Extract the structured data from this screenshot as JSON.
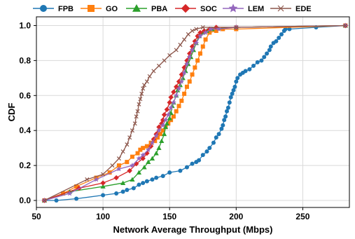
{
  "chart_data": {
    "type": "line",
    "xlabel": "Network Average Throughput (Mbps)",
    "ylabel": "CDF",
    "xlim": [
      50,
      285
    ],
    "ylim": [
      -0.04,
      1.05
    ],
    "xticks": [
      50,
      100,
      150,
      200,
      250
    ],
    "yticks": [
      0.0,
      0.2,
      0.4,
      0.6,
      0.8,
      1.0
    ],
    "xtick_labels": [
      "50",
      "100",
      "150",
      "200",
      "250"
    ],
    "ytick_labels": [
      "0.0",
      "0.2",
      "0.4",
      "0.6",
      "0.8",
      "1.0"
    ],
    "grid": true,
    "legend": "top, single row above plot",
    "series": [
      {
        "name": "FPB",
        "color": "#1f77b4",
        "marker": "circle",
        "x": [
          56,
          65,
          80,
          100,
          110,
          115,
          118,
          123,
          127,
          130,
          133,
          137,
          140,
          145,
          150,
          158,
          163,
          167,
          170,
          172,
          175,
          178,
          180,
          183,
          185,
          187,
          189,
          190,
          191,
          192,
          193,
          194,
          195,
          196,
          197,
          198,
          199,
          200,
          201,
          203,
          205,
          207,
          210,
          213,
          216,
          219,
          221,
          223,
          225,
          226,
          228,
          230,
          232,
          234,
          236,
          237,
          240,
          260,
          282
        ],
        "y": [
          0.0,
          0.0,
          0.01,
          0.03,
          0.04,
          0.05,
          0.06,
          0.07,
          0.09,
          0.1,
          0.11,
          0.12,
          0.13,
          0.14,
          0.16,
          0.17,
          0.19,
          0.21,
          0.22,
          0.23,
          0.26,
          0.28,
          0.3,
          0.33,
          0.36,
          0.38,
          0.41,
          0.43,
          0.46,
          0.48,
          0.51,
          0.53,
          0.56,
          0.59,
          0.61,
          0.63,
          0.65,
          0.68,
          0.7,
          0.72,
          0.73,
          0.74,
          0.75,
          0.77,
          0.79,
          0.8,
          0.82,
          0.84,
          0.86,
          0.88,
          0.9,
          0.91,
          0.93,
          0.95,
          0.97,
          0.98,
          0.98,
          0.99,
          1.0
        ]
      },
      {
        "name": "GO",
        "color": "#ff7f0e",
        "marker": "square",
        "x": [
          56,
          70,
          80,
          95,
          105,
          112,
          118,
          122,
          126,
          128,
          130,
          133,
          136,
          139,
          141,
          143,
          145,
          147,
          149,
          151,
          153,
          155,
          157,
          159,
          161,
          163,
          165,
          167,
          169,
          171,
          173,
          175,
          177,
          180,
          185,
          190,
          200,
          282
        ],
        "y": [
          0.0,
          0.04,
          0.08,
          0.13,
          0.16,
          0.2,
          0.22,
          0.25,
          0.27,
          0.29,
          0.3,
          0.31,
          0.33,
          0.34,
          0.36,
          0.38,
          0.4,
          0.42,
          0.44,
          0.46,
          0.48,
          0.51,
          0.54,
          0.57,
          0.61,
          0.65,
          0.68,
          0.72,
          0.76,
          0.8,
          0.84,
          0.88,
          0.92,
          0.96,
          0.97,
          0.98,
          0.98,
          1.0
        ]
      },
      {
        "name": "PBA",
        "color": "#2ca02c",
        "marker": "triangle",
        "x": [
          56,
          75,
          100,
          115,
          122,
          127,
          131,
          134,
          137,
          140,
          142,
          144,
          146,
          147,
          148,
          150,
          151,
          152,
          153,
          155,
          156,
          158,
          160,
          162,
          164,
          166,
          168,
          170,
          172,
          175,
          178,
          182,
          200,
          282
        ],
        "y": [
          0.0,
          0.05,
          0.08,
          0.1,
          0.12,
          0.16,
          0.19,
          0.22,
          0.24,
          0.27,
          0.3,
          0.34,
          0.38,
          0.42,
          0.44,
          0.47,
          0.5,
          0.54,
          0.56,
          0.6,
          0.63,
          0.66,
          0.7,
          0.74,
          0.78,
          0.82,
          0.86,
          0.9,
          0.94,
          0.96,
          0.97,
          0.98,
          0.99,
          1.0
        ]
      },
      {
        "name": "SOC",
        "color": "#d62728",
        "marker": "diamond",
        "x": [
          56,
          82,
          100,
          110,
          120,
          125,
          130,
          133,
          136,
          138,
          140,
          142,
          144,
          145,
          146,
          148,
          150,
          151,
          153,
          155,
          157,
          159,
          161,
          163,
          165,
          167,
          169,
          171,
          173,
          176,
          180,
          185,
          200,
          282
        ],
        "y": [
          0.0,
          0.07,
          0.1,
          0.13,
          0.17,
          0.21,
          0.24,
          0.27,
          0.31,
          0.35,
          0.38,
          0.42,
          0.44,
          0.46,
          0.49,
          0.52,
          0.56,
          0.59,
          0.62,
          0.65,
          0.68,
          0.72,
          0.76,
          0.8,
          0.84,
          0.88,
          0.91,
          0.94,
          0.96,
          0.97,
          0.98,
          0.99,
          0.99,
          1.0
        ]
      },
      {
        "name": "LEM",
        "color": "#9467bd",
        "marker": "star",
        "x": [
          56,
          75,
          95,
          112,
          122,
          127,
          130,
          134,
          137,
          140,
          142,
          145,
          147,
          149,
          151,
          153,
          155,
          157,
          159,
          161,
          163,
          165,
          167,
          170,
          173,
          177,
          181,
          187,
          200,
          282
        ],
        "y": [
          0.0,
          0.04,
          0.12,
          0.18,
          0.2,
          0.24,
          0.26,
          0.29,
          0.33,
          0.37,
          0.4,
          0.43,
          0.46,
          0.49,
          0.53,
          0.56,
          0.6,
          0.64,
          0.68,
          0.73,
          0.78,
          0.82,
          0.86,
          0.9,
          0.94,
          0.96,
          0.98,
          0.98,
          0.99,
          1.0
        ]
      },
      {
        "name": "EDE",
        "color": "#8c564b",
        "marker": "x",
        "x": [
          56,
          88,
          100,
          107,
          112,
          115,
          118,
          120,
          122,
          124,
          125,
          126,
          127,
          128,
          129,
          130,
          131,
          133,
          135,
          138,
          142,
          146,
          150,
          155,
          158,
          161,
          164,
          167,
          170,
          175,
          200,
          282
        ],
        "y": [
          0.0,
          0.12,
          0.15,
          0.2,
          0.24,
          0.28,
          0.32,
          0.36,
          0.4,
          0.44,
          0.48,
          0.51,
          0.55,
          0.58,
          0.61,
          0.64,
          0.66,
          0.68,
          0.71,
          0.74,
          0.77,
          0.8,
          0.83,
          0.86,
          0.89,
          0.92,
          0.95,
          0.97,
          0.98,
          0.99,
          0.99,
          1.0
        ]
      }
    ]
  }
}
